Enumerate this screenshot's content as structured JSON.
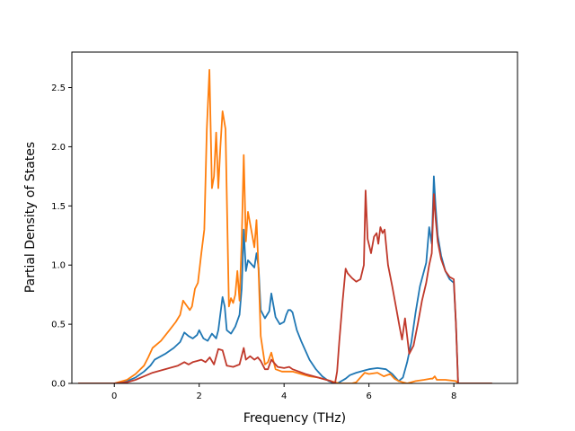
{
  "chart_data": {
    "type": "line",
    "xlabel": "Frequency (THz)",
    "ylabel": "Partial Density of States",
    "xlim": [
      -1.0,
      9.5
    ],
    "ylim": [
      0.0,
      2.8
    ],
    "xticks": [
      0,
      2,
      4,
      6,
      8
    ],
    "xtick_labels": [
      "0",
      "2",
      "4",
      "6",
      "8"
    ],
    "yticks": [
      0.0,
      0.5,
      1.0,
      1.5,
      2.0,
      2.5
    ],
    "ytick_labels": [
      "0.0",
      "0.5",
      "1.0",
      "1.5",
      "2.0",
      "2.5"
    ],
    "grid": false,
    "legend": "none",
    "series": [
      {
        "color": "#1f77b4",
        "x": [
          -0.85,
          -0.3,
          0.0,
          0.3,
          0.5,
          0.7,
          0.85,
          0.95,
          1.2,
          1.4,
          1.55,
          1.65,
          1.75,
          1.85,
          1.95,
          2.0,
          2.1,
          2.2,
          2.3,
          2.4,
          2.45,
          2.55,
          2.6,
          2.65,
          2.75,
          2.85,
          2.95,
          3.0,
          3.05,
          3.1,
          3.15,
          3.2,
          3.3,
          3.35,
          3.4,
          3.45,
          3.55,
          3.65,
          3.7,
          3.8,
          3.9,
          4.0,
          4.05,
          4.1,
          4.15,
          4.2,
          4.3,
          4.4,
          4.5,
          4.6,
          4.75,
          4.9,
          5.05,
          5.2,
          5.25,
          5.35,
          5.45,
          5.55,
          5.7,
          5.9,
          6.0,
          6.2,
          6.4,
          6.55,
          6.7,
          6.8,
          6.9,
          7.0,
          7.1,
          7.2,
          7.35,
          7.42,
          7.48,
          7.53,
          7.57,
          7.62,
          7.7,
          7.8,
          7.9,
          8.0,
          8.05,
          8.1,
          8.3,
          8.9
        ],
        "y": [
          0.0,
          0.0,
          0.0,
          0.02,
          0.05,
          0.1,
          0.15,
          0.2,
          0.25,
          0.3,
          0.35,
          0.43,
          0.4,
          0.38,
          0.41,
          0.45,
          0.38,
          0.36,
          0.42,
          0.38,
          0.45,
          0.73,
          0.65,
          0.45,
          0.42,
          0.48,
          0.58,
          0.8,
          1.3,
          0.95,
          1.04,
          1.02,
          0.98,
          1.1,
          0.98,
          0.62,
          0.55,
          0.61,
          0.76,
          0.56,
          0.5,
          0.52,
          0.58,
          0.62,
          0.62,
          0.6,
          0.45,
          0.36,
          0.28,
          0.2,
          0.12,
          0.06,
          0.02,
          0.0,
          0.0,
          0.02,
          0.04,
          0.07,
          0.09,
          0.11,
          0.12,
          0.13,
          0.12,
          0.08,
          0.02,
          0.05,
          0.18,
          0.35,
          0.6,
          0.82,
          1.02,
          1.32,
          1.18,
          1.75,
          1.5,
          1.25,
          1.08,
          0.95,
          0.88,
          0.85,
          0.5,
          0.0,
          0.0,
          0.0
        ]
      },
      {
        "color": "#ff7f0e",
        "x": [
          -0.85,
          -0.3,
          0.0,
          0.3,
          0.5,
          0.7,
          0.8,
          0.9,
          1.1,
          1.3,
          1.45,
          1.55,
          1.62,
          1.7,
          1.78,
          1.83,
          1.9,
          1.97,
          2.05,
          2.12,
          2.18,
          2.24,
          2.3,
          2.35,
          2.4,
          2.45,
          2.5,
          2.55,
          2.62,
          2.7,
          2.75,
          2.8,
          2.85,
          2.9,
          2.95,
          3.0,
          3.05,
          3.1,
          3.15,
          3.2,
          3.25,
          3.3,
          3.35,
          3.4,
          3.45,
          3.55,
          3.62,
          3.7,
          3.8,
          3.95,
          4.1,
          4.2,
          4.4,
          4.6,
          4.8,
          5.0,
          5.2,
          5.3,
          5.45,
          5.6,
          5.7,
          5.8,
          5.9,
          6.0,
          6.2,
          6.35,
          6.5,
          6.6,
          6.7,
          6.8,
          6.9,
          7.1,
          7.3,
          7.45,
          7.5,
          7.55,
          7.6,
          7.8,
          8.05,
          8.1,
          8.3,
          8.9
        ],
        "y": [
          0.0,
          0.0,
          0.0,
          0.03,
          0.08,
          0.15,
          0.22,
          0.3,
          0.36,
          0.45,
          0.52,
          0.58,
          0.7,
          0.66,
          0.62,
          0.65,
          0.8,
          0.85,
          1.1,
          1.3,
          2.15,
          2.65,
          1.65,
          1.75,
          2.12,
          1.65,
          2.0,
          2.3,
          2.15,
          0.65,
          0.72,
          0.68,
          0.75,
          0.95,
          0.7,
          1.2,
          1.93,
          1.2,
          1.45,
          1.35,
          1.25,
          1.15,
          1.38,
          0.95,
          0.4,
          0.16,
          0.18,
          0.26,
          0.12,
          0.1,
          0.1,
          0.1,
          0.08,
          0.06,
          0.05,
          0.03,
          0.01,
          0.0,
          0.0,
          0.0,
          0.01,
          0.05,
          0.09,
          0.08,
          0.09,
          0.06,
          0.08,
          0.04,
          0.02,
          0.01,
          0.0,
          0.02,
          0.03,
          0.04,
          0.04,
          0.06,
          0.03,
          0.03,
          0.02,
          0.0,
          0.0,
          0.0
        ]
      },
      {
        "color": "#c0392b",
        "x": [
          -0.85,
          -0.3,
          0.0,
          0.3,
          0.5,
          0.7,
          0.9,
          1.1,
          1.3,
          1.5,
          1.65,
          1.75,
          1.85,
          1.95,
          2.05,
          2.15,
          2.25,
          2.35,
          2.45,
          2.55,
          2.65,
          2.8,
          2.95,
          3.05,
          3.1,
          3.2,
          3.3,
          3.38,
          3.45,
          3.55,
          3.62,
          3.7,
          3.85,
          4.0,
          4.12,
          4.2,
          4.35,
          4.5,
          4.7,
          4.9,
          5.1,
          5.2,
          5.25,
          5.3,
          5.38,
          5.45,
          5.5,
          5.6,
          5.7,
          5.8,
          5.88,
          5.92,
          5.97,
          6.05,
          6.12,
          6.18,
          6.22,
          6.27,
          6.32,
          6.37,
          6.45,
          6.55,
          6.65,
          6.72,
          6.78,
          6.85,
          6.95,
          7.05,
          7.15,
          7.25,
          7.35,
          7.42,
          7.48,
          7.53,
          7.57,
          7.62,
          7.7,
          7.8,
          7.9,
          8.0,
          8.05,
          8.1,
          8.3,
          8.9
        ],
        "y": [
          0.0,
          0.0,
          0.0,
          0.01,
          0.03,
          0.06,
          0.09,
          0.11,
          0.13,
          0.15,
          0.18,
          0.16,
          0.18,
          0.19,
          0.2,
          0.18,
          0.22,
          0.16,
          0.29,
          0.28,
          0.15,
          0.14,
          0.16,
          0.3,
          0.2,
          0.23,
          0.2,
          0.22,
          0.19,
          0.12,
          0.12,
          0.2,
          0.14,
          0.13,
          0.14,
          0.12,
          0.1,
          0.08,
          0.06,
          0.04,
          0.02,
          0.0,
          0.1,
          0.35,
          0.7,
          0.97,
          0.93,
          0.89,
          0.86,
          0.88,
          1.0,
          1.63,
          1.22,
          1.1,
          1.24,
          1.27,
          1.18,
          1.32,
          1.27,
          1.3,
          1.0,
          0.82,
          0.62,
          0.48,
          0.37,
          0.55,
          0.25,
          0.32,
          0.5,
          0.7,
          0.85,
          1.0,
          1.1,
          1.6,
          1.4,
          1.2,
          1.05,
          0.95,
          0.9,
          0.88,
          0.5,
          0.0,
          0.0,
          0.0
        ]
      }
    ]
  }
}
